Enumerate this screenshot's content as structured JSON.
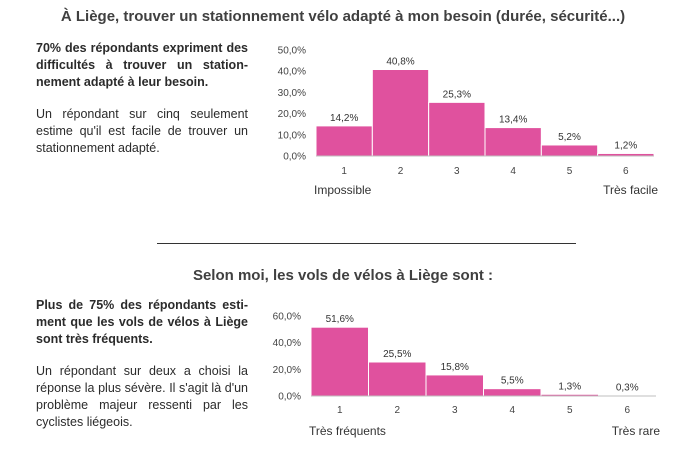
{
  "headings": {
    "top": "À Liège, trouver un stationnement vélo adapté à mon besoin (durée, sécurité...)",
    "bottom": "Selon moi, les vols de vélos à Liège sont :"
  },
  "text1": {
    "lead": "70% des répondants expriment des difficultés à trouver un station-nement adapté à leur besoin.",
    "body": "Un répondant sur cinq seulement estime qu'il est facile de trouver un stationnement adapté."
  },
  "text2": {
    "lead": "Plus de 75% des répondants esti-ment que les vols de vélos à Liège sont très fréquents.",
    "body": "Un répondant sur deux a choisi la réponse la plus sévère. Il s'agit là d'un problème majeur ressenti par les cyclistes liégeois."
  },
  "colors": {
    "bar": "#e0519e",
    "bar_edge": "#ffffff",
    "axis": "#bfbfbf"
  },
  "chart_data": [
    {
      "type": "bar",
      "categories": [
        "1",
        "2",
        "3",
        "4",
        "5",
        "6"
      ],
      "values": [
        14.2,
        40.8,
        25.3,
        13.4,
        5.2,
        1.2
      ],
      "data_labels": [
        "14,2%",
        "40,8%",
        "25,3%",
        "13,4%",
        "5,2%",
        "1,2%"
      ],
      "yticks": [
        0,
        10,
        20,
        30,
        40,
        50
      ],
      "ytick_labels": [
        "0,0%",
        "10,0%",
        "20,0%",
        "30,0%",
        "40,0%",
        "50,0%"
      ],
      "ylim": [
        0,
        50
      ],
      "low_end_label": "Impossible",
      "high_end_label": "Très facile",
      "grid": false
    },
    {
      "type": "bar",
      "categories": [
        "1",
        "2",
        "3",
        "4",
        "5",
        "6"
      ],
      "values": [
        51.6,
        25.5,
        15.8,
        5.5,
        1.3,
        0.3
      ],
      "data_labels": [
        "51,6%",
        "25,5%",
        "15,8%",
        "5,5%",
        "1,3%",
        "0,3%"
      ],
      "yticks": [
        0,
        20,
        40,
        60
      ],
      "ytick_labels": [
        "0,0%",
        "20,0%",
        "40,0%",
        "60,0%"
      ],
      "ylim": [
        0,
        60
      ],
      "low_end_label": "Très fréquents",
      "high_end_label": "Très rare",
      "grid": false
    }
  ]
}
